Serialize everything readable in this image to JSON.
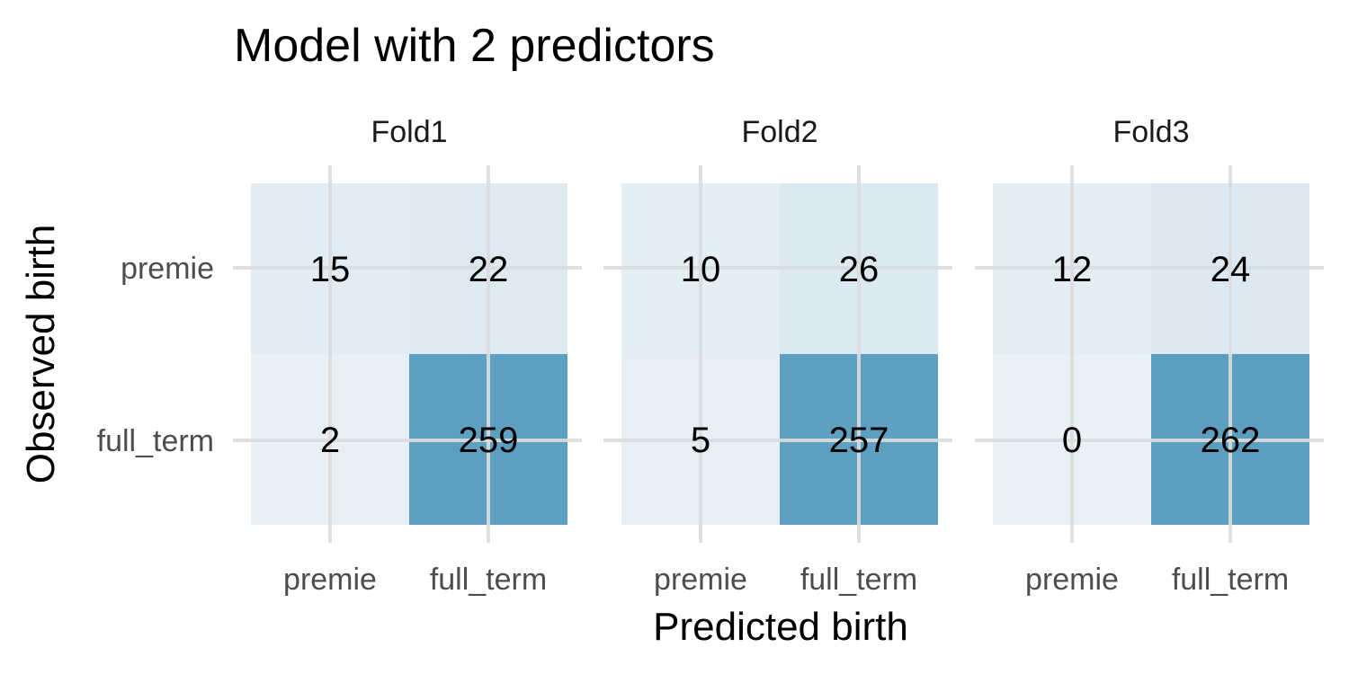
{
  "chart_data": {
    "type": "heatmap",
    "title": "Model with 2 predictors",
    "xlabel": "Predicted birth",
    "ylabel": "Observed birth",
    "x_categories": [
      "premie",
      "full_term"
    ],
    "y_categories": [
      "premie",
      "full_term"
    ],
    "facets": [
      {
        "name": "Fold1",
        "cells": [
          {
            "observed": "premie",
            "predicted": "premie",
            "value": 15
          },
          {
            "observed": "premie",
            "predicted": "full_term",
            "value": 22
          },
          {
            "observed": "full_term",
            "predicted": "premie",
            "value": 2
          },
          {
            "observed": "full_term",
            "predicted": "full_term",
            "value": 259
          }
        ]
      },
      {
        "name": "Fold2",
        "cells": [
          {
            "observed": "premie",
            "predicted": "premie",
            "value": 10
          },
          {
            "observed": "premie",
            "predicted": "full_term",
            "value": 26
          },
          {
            "observed": "full_term",
            "predicted": "premie",
            "value": 5
          },
          {
            "observed": "full_term",
            "predicted": "full_term",
            "value": 257
          }
        ]
      },
      {
        "name": "Fold3",
        "cells": [
          {
            "observed": "premie",
            "predicted": "premie",
            "value": 12
          },
          {
            "observed": "premie",
            "predicted": "full_term",
            "value": 24
          },
          {
            "observed": "full_term",
            "predicted": "premie",
            "value": 0
          },
          {
            "observed": "full_term",
            "predicted": "full_term",
            "value": 262
          }
        ]
      }
    ],
    "color_scale": {
      "low": "#e9f1f7",
      "high": "#5a9ec0"
    },
    "grid": true,
    "legend": "none"
  }
}
